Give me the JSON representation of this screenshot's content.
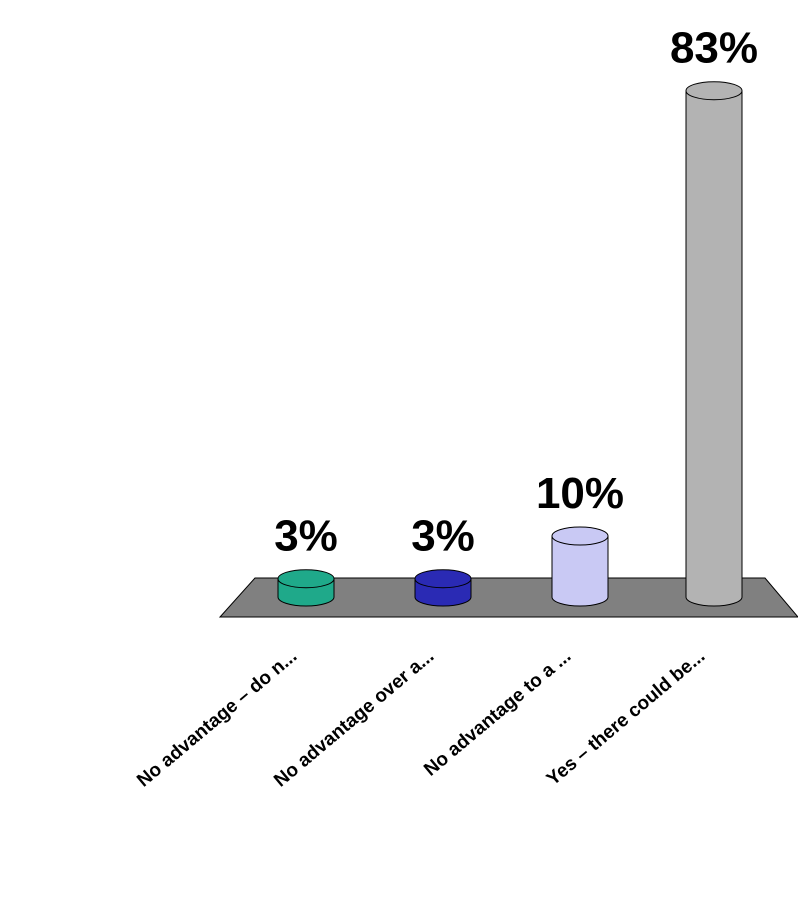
{
  "chart_data": {
    "type": "bar",
    "categories": [
      "No advantage – do n...",
      "No advantage over a...",
      "No advantage to a ...",
      "Yes – there could be..."
    ],
    "values": [
      3,
      3,
      10,
      83
    ],
    "value_labels": [
      "3%",
      "3%",
      "10%",
      "83%"
    ],
    "colors": [
      "#1fa98a",
      "#2a2ab4",
      "#c9c9f4",
      "#b3b3b3"
    ]
  }
}
